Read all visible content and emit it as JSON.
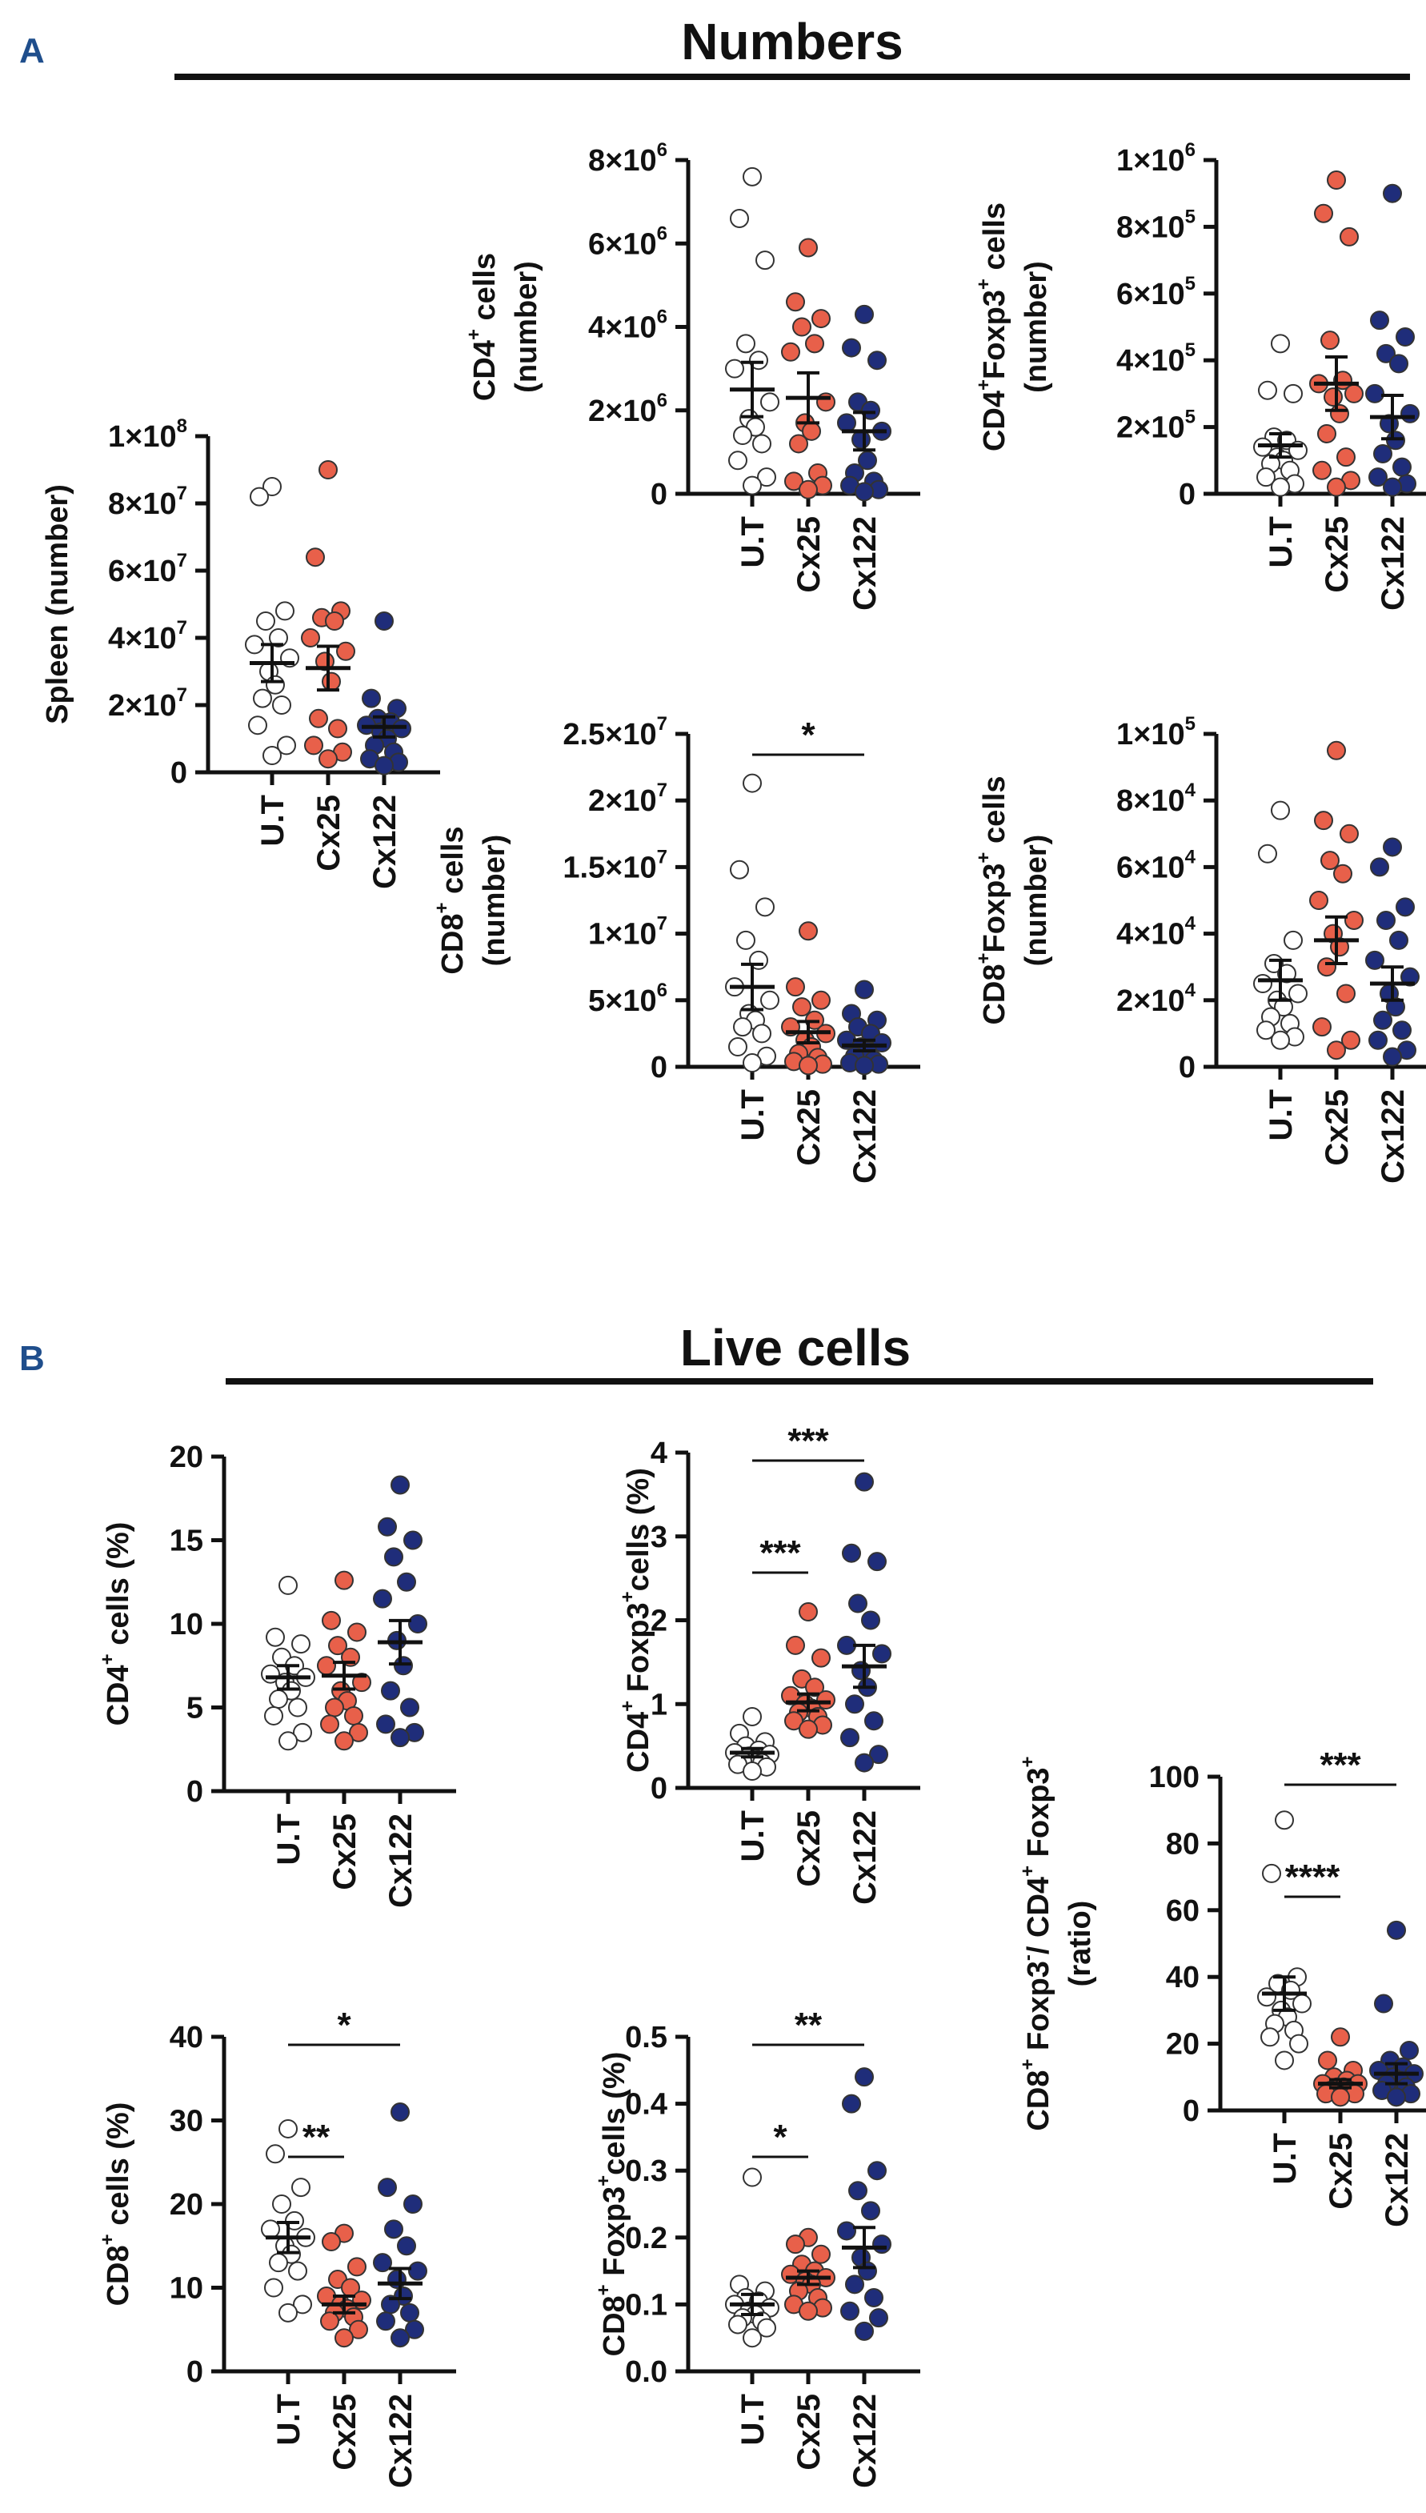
{
  "panels": [
    {
      "letter": "A",
      "title": "Numbers"
    },
    {
      "letter": "B",
      "title": "Live cells"
    }
  ],
  "colors": {
    "ut": "#ffffff",
    "cx25": "#e8604a",
    "cx122": "#1f2d7a",
    "ink": "#111111",
    "accent": "#1f4e8c"
  },
  "chart_data": [
    {
      "id": "spleen",
      "type": "scatter",
      "panel": "A",
      "ylabel": "Spleen (number)",
      "ylim": [
        0,
        100000000
      ],
      "yticks": [
        0,
        20000000,
        40000000,
        60000000,
        80000000,
        100000000
      ],
      "ytick_labels": [
        "0",
        "2×10^7",
        "4×10^7",
        "6×10^7",
        "8×10^7",
        "1×10^8"
      ],
      "categories": [
        "U.T",
        "Cx25",
        "Cx122"
      ],
      "series": [
        {
          "name": "U.T",
          "values": [
            85000000,
            82000000,
            48000000,
            45000000,
            40000000,
            38000000,
            34000000,
            30000000,
            26000000,
            22000000,
            20000000,
            14000000,
            8000000,
            5000000
          ],
          "mean": 32500000,
          "sem": 5500000
        },
        {
          "name": "Cx25",
          "values": [
            90000000,
            64000000,
            48000000,
            46000000,
            45000000,
            40000000,
            36000000,
            33000000,
            27000000,
            16000000,
            13000000,
            8000000,
            6000000,
            4000000
          ],
          "mean": 31000000,
          "sem": 6500000
        },
        {
          "name": "Cx122",
          "values": [
            45000000,
            22000000,
            19000000,
            16000000,
            15000000,
            14000000,
            13000000,
            12000000,
            10000000,
            8000000,
            6000000,
            4000000,
            3000000,
            2000000
          ],
          "mean": 13500000,
          "sem": 3000000
        }
      ],
      "significance": []
    },
    {
      "id": "cd4_number",
      "type": "scatter",
      "panel": "A",
      "ylabel": "CD4+ cells (number)",
      "ylim": [
        0,
        8000000
      ],
      "yticks": [
        0,
        2000000,
        4000000,
        6000000,
        8000000
      ],
      "ytick_labels": [
        "0",
        "2×10^6",
        "4×10^6",
        "6×10^6",
        "8×10^6"
      ],
      "categories": [
        "U.T",
        "Cx25",
        "Cx122"
      ],
      "series": [
        {
          "name": "U.T",
          "values": [
            7600000,
            6600000,
            5600000,
            3600000,
            3200000,
            3000000,
            2200000,
            1800000,
            1600000,
            1400000,
            1200000,
            800000,
            400000,
            200000
          ],
          "mean": 2500000,
          "sem": 650000
        },
        {
          "name": "Cx25",
          "values": [
            5900000,
            4600000,
            4200000,
            4000000,
            3600000,
            3400000,
            2200000,
            1700000,
            1500000,
            1200000,
            500000,
            300000,
            200000,
            100000
          ],
          "mean": 2300000,
          "sem": 600000
        },
        {
          "name": "Cx122",
          "values": [
            4300000,
            3500000,
            3200000,
            2200000,
            2000000,
            1700000,
            1500000,
            1300000,
            800000,
            500000,
            300000,
            200000,
            100000,
            50000
          ],
          "mean": 1500000,
          "sem": 450000
        }
      ],
      "significance": []
    },
    {
      "id": "cd4_foxp3_number",
      "type": "scatter",
      "panel": "A",
      "ylabel": "CD4+Foxp3+ cells (number)",
      "ylim": [
        0,
        1000000
      ],
      "yticks": [
        0,
        200000,
        400000,
        600000,
        800000,
        1000000
      ],
      "ytick_labels": [
        "0",
        "2×10^5",
        "4×10^5",
        "6×10^5",
        "8×10^5",
        "1×10^6"
      ],
      "categories": [
        "U.T",
        "Cx25",
        "Cx122"
      ],
      "series": [
        {
          "name": "U.T",
          "values": [
            450000,
            310000,
            300000,
            170000,
            160000,
            140000,
            130000,
            110000,
            100000,
            90000,
            70000,
            50000,
            30000,
            20000
          ],
          "mean": 145000,
          "sem": 35000
        },
        {
          "name": "Cx25",
          "values": [
            940000,
            840000,
            770000,
            460000,
            340000,
            330000,
            300000,
            290000,
            240000,
            180000,
            110000,
            70000,
            40000,
            20000
          ],
          "mean": 330000,
          "sem": 80000
        },
        {
          "name": "Cx122",
          "values": [
            900000,
            520000,
            470000,
            420000,
            390000,
            300000,
            240000,
            210000,
            160000,
            120000,
            80000,
            50000,
            30000,
            20000
          ],
          "mean": 230000,
          "sem": 65000
        }
      ],
      "significance": []
    },
    {
      "id": "cd8_number",
      "type": "scatter",
      "panel": "A",
      "ylabel": "CD8+ cells (number)",
      "ylim": [
        0,
        25000000
      ],
      "yticks": [
        0,
        5000000,
        10000000,
        15000000,
        20000000,
        25000000
      ],
      "ytick_labels": [
        "0",
        "5×10^6",
        "1×10^7",
        "1.5×10^7",
        "2×10^7",
        "2.5×10^7"
      ],
      "categories": [
        "U.T",
        "Cx25",
        "Cx122"
      ],
      "series": [
        {
          "name": "U.T",
          "values": [
            21300000,
            14800000,
            12000000,
            9500000,
            8000000,
            6000000,
            5000000,
            4000000,
            3500000,
            3000000,
            2500000,
            1500000,
            800000,
            300000
          ],
          "mean": 6000000,
          "sem": 1700000
        },
        {
          "name": "Cx25",
          "values": [
            10200000,
            6000000,
            5000000,
            4500000,
            3500000,
            3000000,
            2500000,
            2000000,
            1500000,
            1000000,
            700000,
            400000,
            200000,
            100000
          ],
          "mean": 2600000,
          "sem": 800000
        },
        {
          "name": "Cx122",
          "values": [
            5800000,
            4000000,
            3500000,
            3000000,
            2500000,
            2000000,
            1800000,
            1500000,
            1200000,
            800000,
            500000,
            300000,
            200000,
            100000
          ],
          "mean": 1600000,
          "sem": 400000
        }
      ],
      "significance": [
        {
          "from": "U.T",
          "to": "Cx122",
          "label": "*",
          "level": 0
        }
      ]
    },
    {
      "id": "cd8_foxp3_number",
      "type": "scatter",
      "panel": "A",
      "ylabel": "CD8+Foxp3+ cells (number)",
      "ylim": [
        0,
        100000
      ],
      "yticks": [
        0,
        20000,
        40000,
        60000,
        80000,
        100000
      ],
      "ytick_labels": [
        "0",
        "2×10^4",
        "4×10^4",
        "6×10^4",
        "8×10^4",
        "1×10^5"
      ],
      "categories": [
        "U.T",
        "Cx25",
        "Cx122"
      ],
      "series": [
        {
          "name": "U.T",
          "values": [
            77000,
            64000,
            38000,
            31000,
            28000,
            25000,
            22000,
            20000,
            18000,
            15000,
            13000,
            11000,
            9000,
            8000
          ],
          "mean": 26000,
          "sem": 6000
        },
        {
          "name": "Cx25",
          "values": [
            95000,
            74000,
            70000,
            62000,
            58000,
            50000,
            44000,
            40000,
            36000,
            30000,
            22000,
            12000,
            8000,
            5000
          ],
          "mean": 38000,
          "sem": 7000
        },
        {
          "name": "Cx122",
          "values": [
            66000,
            60000,
            48000,
            44000,
            38000,
            32000,
            27000,
            22000,
            18000,
            14000,
            11000,
            8000,
            5000,
            3000
          ],
          "mean": 25000,
          "sem": 5000
        }
      ],
      "significance": []
    },
    {
      "id": "cd4_pct",
      "type": "scatter",
      "panel": "B",
      "ylabel": "CD4+ cells (%)",
      "ylim": [
        0,
        20
      ],
      "yticks": [
        0,
        5,
        10,
        15,
        20
      ],
      "ytick_labels": [
        "0",
        "5",
        "10",
        "15",
        "20"
      ],
      "categories": [
        "U.T",
        "Cx25",
        "Cx122"
      ],
      "series": [
        {
          "name": "U.T",
          "values": [
            12.3,
            9.2,
            8.8,
            8.0,
            7.5,
            7.0,
            6.8,
            6.5,
            6.0,
            5.5,
            5.0,
            4.5,
            3.5,
            3.0
          ],
          "mean": 6.8,
          "sem": 0.7
        },
        {
          "name": "Cx25",
          "values": [
            12.6,
            10.2,
            9.5,
            8.7,
            8.0,
            7.5,
            6.5,
            6.0,
            5.4,
            5.0,
            4.5,
            4.0,
            3.5,
            3.0
          ],
          "mean": 6.9,
          "sem": 0.8
        },
        {
          "name": "Cx122",
          "values": [
            18.3,
            15.8,
            15.0,
            14.0,
            12.5,
            11.5,
            10.0,
            9.0,
            7.5,
            6.0,
            5.0,
            4.0,
            3.5,
            3.2
          ],
          "mean": 8.9,
          "sem": 1.3
        }
      ],
      "significance": []
    },
    {
      "id": "cd4_foxp3_pct",
      "type": "scatter",
      "panel": "B",
      "ylabel": "CD4+ Foxp3+cells (%)",
      "ylim": [
        0,
        4
      ],
      "yticks": [
        0,
        1,
        2,
        3,
        4
      ],
      "ytick_labels": [
        "0",
        "1",
        "2",
        "3",
        "4"
      ],
      "categories": [
        "U.T",
        "Cx25",
        "Cx122"
      ],
      "series": [
        {
          "name": "U.T",
          "values": [
            0.85,
            0.65,
            0.55,
            0.5,
            0.45,
            0.42,
            0.4,
            0.38,
            0.35,
            0.32,
            0.3,
            0.28,
            0.25,
            0.2
          ],
          "mean": 0.42,
          "sem": 0.05
        },
        {
          "name": "Cx25",
          "values": [
            2.1,
            1.7,
            1.55,
            1.3,
            1.2,
            1.1,
            1.05,
            1.0,
            0.95,
            0.9,
            0.85,
            0.8,
            0.75,
            0.7
          ],
          "mean": 1.02,
          "sem": 0.1
        },
        {
          "name": "Cx122",
          "values": [
            3.65,
            2.8,
            2.7,
            2.2,
            2.0,
            1.7,
            1.6,
            1.4,
            1.2,
            1.0,
            0.8,
            0.6,
            0.4,
            0.3
          ],
          "mean": 1.45,
          "sem": 0.25
        }
      ],
      "significance": [
        {
          "from": "U.T",
          "to": "Cx25",
          "label": "***",
          "level": 0
        },
        {
          "from": "U.T",
          "to": "Cx122",
          "label": "***",
          "level": 1
        }
      ]
    },
    {
      "id": "ratio",
      "type": "scatter",
      "panel": "B",
      "ylabel": "CD8+ Foxp3-/ CD4+ Foxp3+ (ratio)",
      "ylim": [
        0,
        100
      ],
      "yticks": [
        0,
        20,
        40,
        60,
        80,
        100
      ],
      "ytick_labels": [
        "0",
        "20",
        "40",
        "60",
        "80",
        "100"
      ],
      "categories": [
        "U.T",
        "Cx25",
        "Cx122"
      ],
      "series": [
        {
          "name": "U.T",
          "values": [
            87,
            71,
            40,
            38,
            36,
            34,
            32,
            30,
            28,
            26,
            24,
            22,
            20,
            15
          ],
          "mean": 35,
          "sem": 5
        },
        {
          "name": "Cx25",
          "values": [
            22,
            15,
            12,
            10,
            9,
            8,
            8,
            7,
            7,
            6,
            6,
            5,
            5,
            4
          ],
          "mean": 8,
          "sem": 1.2
        },
        {
          "name": "Cx122",
          "values": [
            54,
            32,
            18,
            15,
            13,
            12,
            11,
            10,
            9,
            8,
            7,
            6,
            5,
            4
          ],
          "mean": 11,
          "sem": 3
        }
      ],
      "significance": [
        {
          "from": "U.T",
          "to": "Cx25",
          "label": "****",
          "level": 0
        },
        {
          "from": "U.T",
          "to": "Cx122",
          "label": "***",
          "level": 1
        }
      ]
    },
    {
      "id": "cd8_pct",
      "type": "scatter",
      "panel": "B",
      "ylabel": "CD8+ cells (%)",
      "ylim": [
        0,
        40
      ],
      "yticks": [
        0,
        10,
        20,
        30,
        40
      ],
      "ytick_labels": [
        "0",
        "10",
        "20",
        "30",
        "40"
      ],
      "categories": [
        "U.T",
        "Cx25",
        "Cx122"
      ],
      "series": [
        {
          "name": "U.T",
          "values": [
            29,
            26,
            22,
            20,
            18,
            17,
            16,
            15,
            14,
            13,
            12,
            10,
            8,
            7
          ],
          "mean": 16,
          "sem": 1.8
        },
        {
          "name": "Cx25",
          "values": [
            16.5,
            15.5,
            12.5,
            11,
            10,
            9,
            8.5,
            8,
            7.5,
            7,
            6.5,
            6,
            5,
            4
          ],
          "mean": 8,
          "sem": 1
        },
        {
          "name": "Cx122",
          "values": [
            31,
            22,
            20,
            17,
            15,
            13,
            12,
            11,
            9,
            8,
            7,
            6,
            5,
            4
          ],
          "mean": 10.5,
          "sem": 1.8
        }
      ],
      "significance": [
        {
          "from": "U.T",
          "to": "Cx25",
          "label": "**",
          "level": 0
        },
        {
          "from": "U.T",
          "to": "Cx122",
          "label": "*",
          "level": 1
        }
      ]
    },
    {
      "id": "cd8_foxp3_pct",
      "type": "scatter",
      "panel": "B",
      "ylabel": "CD8+ Foxp3+cells (%)",
      "ylim": [
        0,
        0.5
      ],
      "yticks": [
        0,
        0.1,
        0.2,
        0.3,
        0.4,
        0.5
      ],
      "ytick_labels": [
        "0.0",
        "0.1",
        "0.2",
        "0.3",
        "0.4",
        "0.5"
      ],
      "categories": [
        "U.T",
        "Cx25",
        "Cx122"
      ],
      "series": [
        {
          "name": "U.T",
          "values": [
            0.29,
            0.13,
            0.12,
            0.11,
            0.105,
            0.1,
            0.095,
            0.09,
            0.085,
            0.08,
            0.075,
            0.07,
            0.065,
            0.05
          ],
          "mean": 0.1,
          "sem": 0.015
        },
        {
          "name": "Cx25",
          "values": [
            0.2,
            0.19,
            0.175,
            0.16,
            0.15,
            0.145,
            0.14,
            0.135,
            0.13,
            0.12,
            0.11,
            0.1,
            0.095,
            0.09
          ],
          "mean": 0.14,
          "sem": 0.01
        },
        {
          "name": "Cx122",
          "values": [
            0.44,
            0.4,
            0.3,
            0.27,
            0.24,
            0.21,
            0.19,
            0.17,
            0.15,
            0.13,
            0.11,
            0.09,
            0.08,
            0.06
          ],
          "mean": 0.185,
          "sem": 0.03
        }
      ],
      "significance": [
        {
          "from": "U.T",
          "to": "Cx25",
          "label": "*",
          "level": 0
        },
        {
          "from": "U.T",
          "to": "Cx122",
          "label": "**",
          "level": 1
        }
      ]
    }
  ]
}
